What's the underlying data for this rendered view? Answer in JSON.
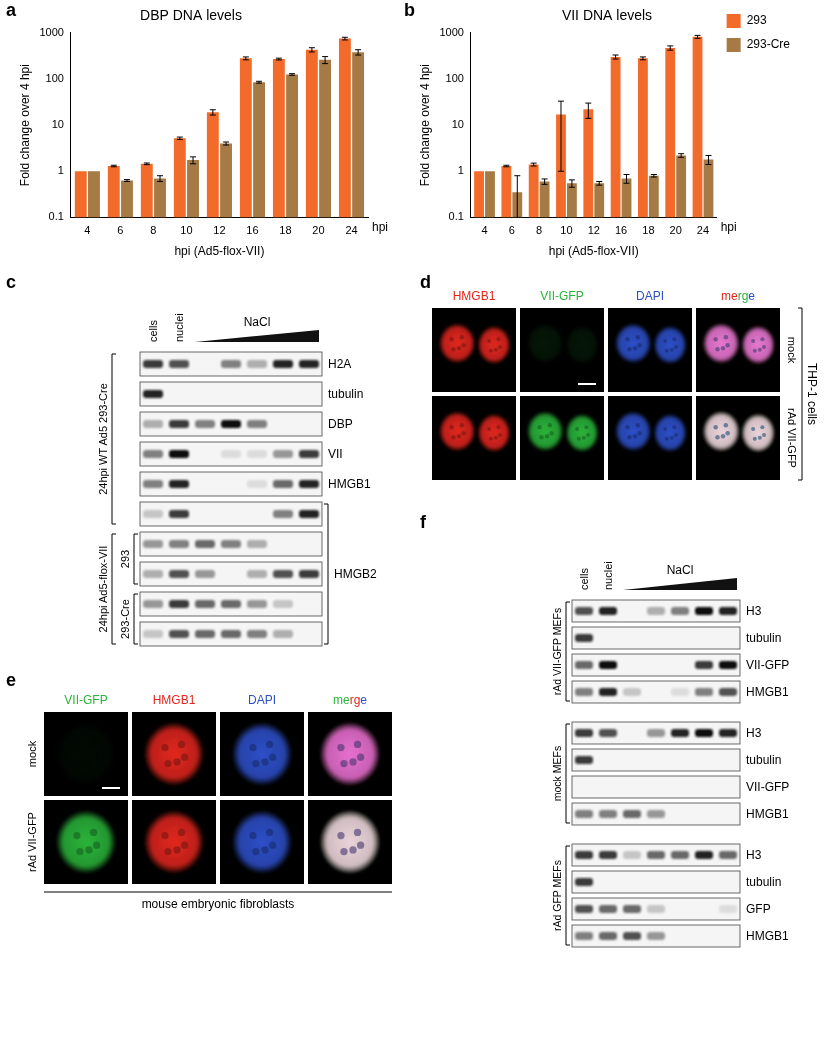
{
  "letters": [
    "a",
    "b",
    "c",
    "d",
    "e",
    "f"
  ],
  "chart_data": [
    {
      "type": "bar",
      "title": "DBP DNA levels",
      "x_label": "hpi (Ad5-flox-VII)",
      "y_label": "Fold change over 4 hpi",
      "annotations": [
        "hpi"
      ],
      "categories": [
        "4",
        "6",
        "8",
        "10",
        "12",
        "16",
        "18",
        "20",
        "24"
      ],
      "series": [
        {
          "color": "#f26b2a",
          "values": [
            1,
            1.3,
            1.45,
            5.2,
            19,
            280,
            270,
            430,
            750
          ],
          "errors": [
            0,
            0.05,
            0.06,
            0.3,
            2.5,
            20,
            12,
            45,
            50
          ]
        },
        {
          "color": "#a57a45",
          "values": [
            1,
            0.63,
            0.7,
            1.75,
            4,
            85,
            125,
            260,
            380
          ],
          "errors": [
            0,
            0.03,
            0.1,
            0.3,
            0.3,
            4,
            5,
            45,
            50
          ]
        }
      ],
      "log": "y",
      "ylim": [
        0.1,
        1000
      ],
      "yticks": [
        0.1,
        1,
        10,
        100,
        1000
      ],
      "grid": false
    },
    {
      "type": "bar",
      "title": "VII DNA levels",
      "x_label": "hpi (Ad5-flox-VII)",
      "y_label": "Fold change over 4 hpi",
      "annotations": [
        "hpi"
      ],
      "categories": [
        "4",
        "6",
        "8",
        "10",
        "12",
        "16",
        "18",
        "20",
        "24"
      ],
      "series": [
        {
          "name": "293",
          "color": "#f26b2a",
          "values": [
            1,
            1.3,
            1.4,
            17,
            22,
            300,
            280,
            470,
            820
          ],
          "errors": [
            0,
            0.05,
            0.1,
            16,
            8,
            30,
            20,
            50,
            60
          ]
        },
        {
          "name": "293-Cre",
          "color": "#a57a45",
          "values": [
            1,
            0.35,
            0.6,
            0.55,
            0.55,
            0.7,
            0.8,
            2.2,
            1.8
          ],
          "errors": [
            0,
            0.45,
            0.08,
            0.1,
            0.05,
            0.15,
            0.05,
            0.2,
            0.4
          ]
        }
      ],
      "log": "y",
      "ylim": [
        0.1,
        1000
      ],
      "yticks": [
        0.1,
        1,
        10,
        100,
        1000
      ],
      "grid": false,
      "legend": "right"
    }
  ],
  "panel_c": {
    "lanes": [
      "cells",
      "nuclei",
      null,
      null,
      null,
      null,
      null
    ],
    "gradient": "NaCl",
    "rows": [
      {
        "label": "H2A",
        "intensity": [
          0.8,
          0.7,
          0,
          0.5,
          0.3,
          0.9,
          0.9
        ]
      },
      {
        "label": "tubulin",
        "intensity": [
          0.9,
          0,
          0,
          0,
          0,
          0,
          0
        ]
      },
      {
        "label": "DBP",
        "intensity": [
          0.3,
          0.8,
          0.5,
          1,
          0.5,
          0,
          0
        ]
      },
      {
        "label": "VII",
        "intensity": [
          0.5,
          1,
          0,
          0.1,
          0.1,
          0.4,
          0.8
        ]
      },
      {
        "label": "HMGB1",
        "intensity": [
          0.5,
          0.9,
          0,
          0,
          0.1,
          0.6,
          0.9
        ]
      },
      {
        "label": null,
        "intensity": [
          0.2,
          0.8,
          0,
          0,
          0,
          0.5,
          0.9
        ]
      },
      {
        "label": null,
        "intensity": [
          0.4,
          0.5,
          0.6,
          0.5,
          0.3,
          0,
          0
        ]
      },
      {
        "label": null,
        "intensity": [
          0.3,
          0.7,
          0.4,
          0,
          0.3,
          0.7,
          0.8
        ]
      },
      {
        "label": null,
        "intensity": [
          0.4,
          0.8,
          0.6,
          0.6,
          0.4,
          0.2,
          0
        ]
      },
      {
        "label": null,
        "intensity": [
          0.2,
          0.7,
          0.6,
          0.6,
          0.5,
          0.3,
          0
        ]
      }
    ],
    "right_brackets": [
      {
        "label": "HMGB2",
        "rows": [
          5,
          9
        ]
      }
    ],
    "left_groups": [
      {
        "label": "24hpi WT Ad5 293-Cre",
        "rows": [
          0,
          5
        ]
      },
      {
        "label": "24hpi Ad5-flox-VII",
        "rows": [
          6,
          9
        ]
      }
    ],
    "left_subgroups": [
      {
        "label": "293",
        "rows": [
          6,
          7
        ]
      },
      {
        "label": "293-Cre",
        "rows": [
          8,
          9
        ]
      }
    ]
  },
  "panel_d": {
    "channels": [
      {
        "label": "HMGB1",
        "color": "#e0261c"
      },
      {
        "label": "VII-GFP",
        "color": "#2ab33a"
      },
      {
        "label": "DAPI",
        "color": "#2d4fc8"
      },
      {
        "label": "merge"
      }
    ],
    "rows": [
      {
        "label": "mock",
        "signal": [
          1,
          0.12,
          1
        ]
      },
      {
        "label": "rAd VII-GFP",
        "signal": [
          1,
          1,
          1
        ]
      }
    ],
    "group": "THP-1 cells"
  },
  "panel_e": {
    "channels": [
      {
        "label": "VII-GFP",
        "color": "#2ab33a"
      },
      {
        "label": "HMGB1",
        "color": "#e0261c"
      },
      {
        "label": "DAPI",
        "color": "#2d4fc8"
      },
      {
        "label": "merge"
      }
    ],
    "rows": [
      {
        "label": "mock",
        "signal": [
          0.05,
          1,
          1
        ]
      },
      {
        "label": "rAd VII-GFP",
        "signal": [
          1,
          1,
          1
        ]
      }
    ],
    "group": "mouse embryonic fibroblasts"
  },
  "panel_f": {
    "lanes": [
      "cells",
      "nuclei",
      null,
      null,
      null,
      null,
      null
    ],
    "gradient": "NaCl",
    "blocks": [
      {
        "label": "rAd VII-GFP MEFs",
        "rows": [
          {
            "label": "H3",
            "intensity": [
              0.7,
              0.9,
              0,
              0.3,
              0.5,
              1,
              0.9
            ]
          },
          {
            "label": "tubulin",
            "intensity": [
              0.8,
              0,
              0,
              0,
              0,
              0,
              0
            ]
          },
          {
            "label": "VII-GFP",
            "intensity": [
              0.6,
              1,
              0,
              0,
              0,
              0.8,
              1
            ]
          },
          {
            "label": "HMGB1",
            "intensity": [
              0.5,
              0.9,
              0.2,
              0,
              0.1,
              0.5,
              0.7
            ]
          }
        ]
      },
      {
        "label": "mock MEFs",
        "rows": [
          {
            "label": "H3",
            "intensity": [
              0.8,
              0.7,
              0,
              0.4,
              0.9,
              1,
              0.9
            ]
          },
          {
            "label": "tubulin",
            "intensity": [
              0.8,
              0,
              0,
              0,
              0,
              0,
              0
            ]
          },
          {
            "label": "VII-GFP",
            "intensity": [
              0,
              0,
              0,
              0,
              0,
              0,
              0
            ]
          },
          {
            "label": "HMGB1",
            "intensity": [
              0.5,
              0.5,
              0.6,
              0.4,
              0,
              0,
              0
            ]
          }
        ]
      },
      {
        "label": "rAd GFP MEFs",
        "rows": [
          {
            "label": "H3",
            "intensity": [
              0.8,
              0.8,
              0.2,
              0.6,
              0.6,
              0.9,
              0.6
            ]
          },
          {
            "label": "tubulin",
            "intensity": [
              0.8,
              0,
              0,
              0,
              0,
              0,
              0
            ]
          },
          {
            "label": "GFP",
            "intensity": [
              0.7,
              0.6,
              0.6,
              0.2,
              0,
              0,
              0.1
            ]
          },
          {
            "label": "HMGB1",
            "intensity": [
              0.5,
              0.6,
              0.7,
              0.4,
              0,
              0,
              0
            ]
          }
        ]
      }
    ]
  }
}
